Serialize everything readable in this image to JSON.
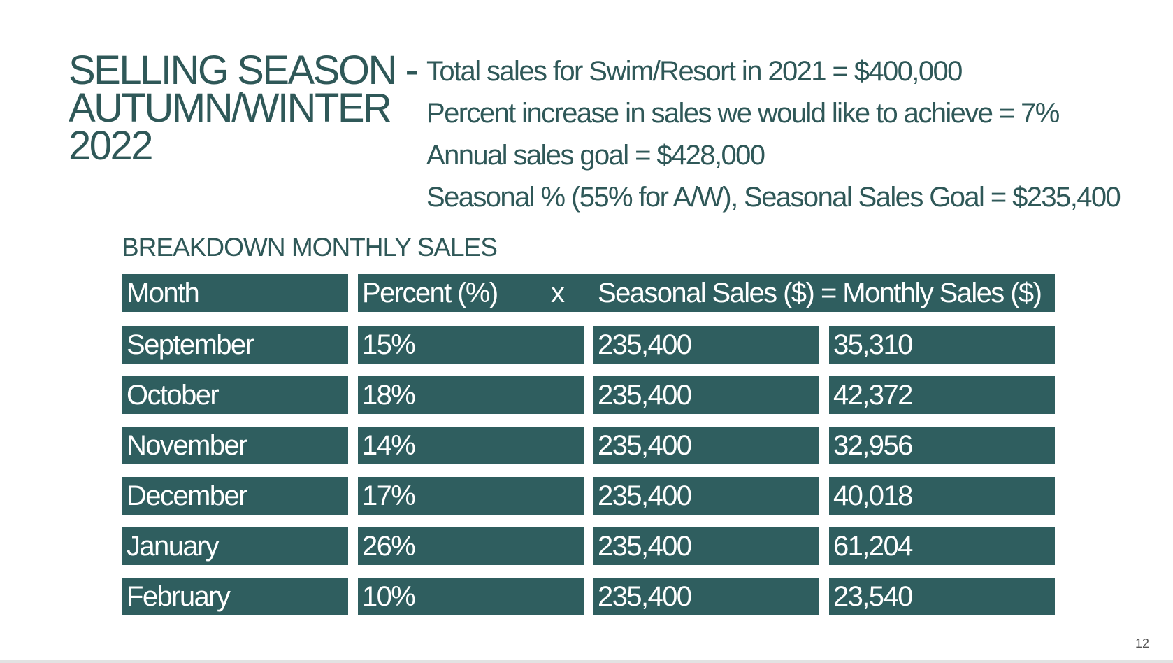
{
  "title": {
    "line1": "SELLING SEASON -",
    "line2": "AUTUMN/WINTER",
    "line3": "2022"
  },
  "facts": [
    "Total sales for Swim/Resort in 2021 = $400,000",
    "Percent increase in sales we would like to achieve = 7%",
    "Annual sales goal = $428,000",
    "Seasonal % (55% for A/W), Seasonal Sales Goal = $235,400"
  ],
  "subtitle": "BREAKDOWN MONTHLY SALES",
  "table": {
    "headers": {
      "month": "Month",
      "percent": "Percent (%)",
      "times": "x",
      "seasonal": "Seasonal Sales ($)",
      "monthly": "= Monthly Sales ($)"
    },
    "rows": [
      {
        "month": "September",
        "percent": "15%",
        "seasonal": "235,400",
        "monthly": "35,310"
      },
      {
        "month": "October",
        "percent": "18%",
        "seasonal": "235,400",
        "monthly": "42,372"
      },
      {
        "month": "November",
        "percent": "14%",
        "seasonal": "235,400",
        "monthly": "32,956"
      },
      {
        "month": "December",
        "percent": "17%",
        "seasonal": "235,400",
        "monthly": "40,018"
      },
      {
        "month": "January",
        "percent": "26%",
        "seasonal": "235,400",
        "monthly": "61,204"
      },
      {
        "month": "February",
        "percent": "10%",
        "seasonal": "235,400",
        "monthly": "23,540"
      }
    ]
  },
  "page_number": "12",
  "colors": {
    "text_teal": "#2f5858",
    "cell_fill": "#2f5e5f",
    "cell_text": "#ffffff"
  }
}
